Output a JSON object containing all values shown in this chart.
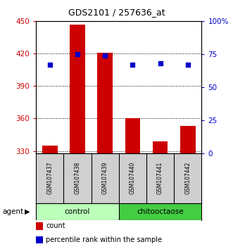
{
  "title": "GDS2101 / 257636_at",
  "samples": [
    "GSM107437",
    "GSM107438",
    "GSM107439",
    "GSM107440",
    "GSM107441",
    "GSM107442"
  ],
  "counts": [
    335,
    447,
    421,
    360,
    339,
    353
  ],
  "percentile_ranks": [
    67,
    75,
    74,
    67,
    68,
    67
  ],
  "bar_bottom": 328,
  "ylim_left": [
    328,
    450
  ],
  "ylim_right": [
    0,
    100
  ],
  "yticks_left": [
    330,
    360,
    390,
    420,
    450
  ],
  "yticks_right": [
    0,
    25,
    50,
    75,
    100
  ],
  "ytick_labels_left": [
    "330",
    "360",
    "390",
    "420",
    "450"
  ],
  "ytick_labels_right": [
    "0",
    "25",
    "50",
    "75",
    "100%"
  ],
  "bar_color": "#cc0000",
  "dot_color": "#0000cc",
  "control_color": "#bbffbb",
  "chitooctaose_color": "#44cc44",
  "agent_label": "agent",
  "legend_items": [
    {
      "label": "count",
      "color": "#cc0000"
    },
    {
      "label": "percentile rank within the sample",
      "color": "#0000cc"
    }
  ],
  "background_color": "#ffffff",
  "tick_color_left": "#cc0000",
  "tick_color_right": "#0000cc"
}
